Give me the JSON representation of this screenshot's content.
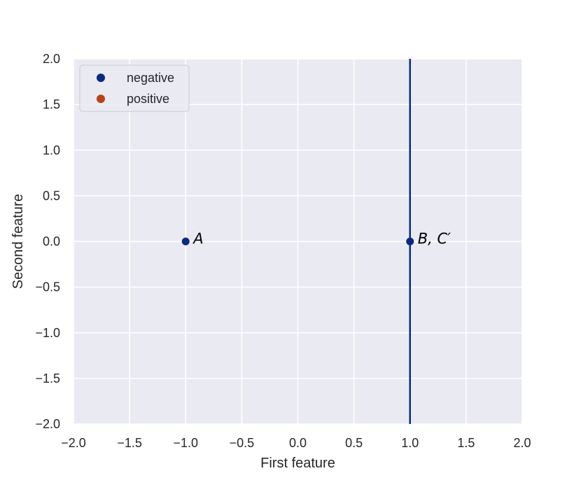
{
  "chart_data": {
    "type": "scatter",
    "xlabel": "First feature",
    "ylabel": "Second feature",
    "xlim": [
      -2.0,
      2.0
    ],
    "ylim": [
      -2.0,
      2.0
    ],
    "x_ticks": [
      "−2.0",
      "−1.5",
      "−1.0",
      "−0.5",
      "0.0",
      "0.5",
      "1.0",
      "1.5",
      "2.0"
    ],
    "y_ticks": [
      "−2.0",
      "−1.5",
      "−1.0",
      "−0.5",
      "0.0",
      "0.5",
      "1.0",
      "1.5",
      "2.0"
    ],
    "grid": true,
    "legend_position": "top-left",
    "legend": [
      {
        "label": "negative",
        "color": "#0c2a7e"
      },
      {
        "label": "positive",
        "color": "#b5431a"
      }
    ],
    "series": [
      {
        "name": "negative",
        "color": "#0c2a7e",
        "points": [
          {
            "x": -1.0,
            "y": 0.0,
            "label": "A"
          },
          {
            "x": 1.0,
            "y": 0.0,
            "label": "B, C′"
          }
        ]
      },
      {
        "name": "positive",
        "color": "#b5431a",
        "points": []
      }
    ],
    "vertical_lines": [
      {
        "x": 1.0,
        "color": "#0c2a7e"
      }
    ]
  }
}
